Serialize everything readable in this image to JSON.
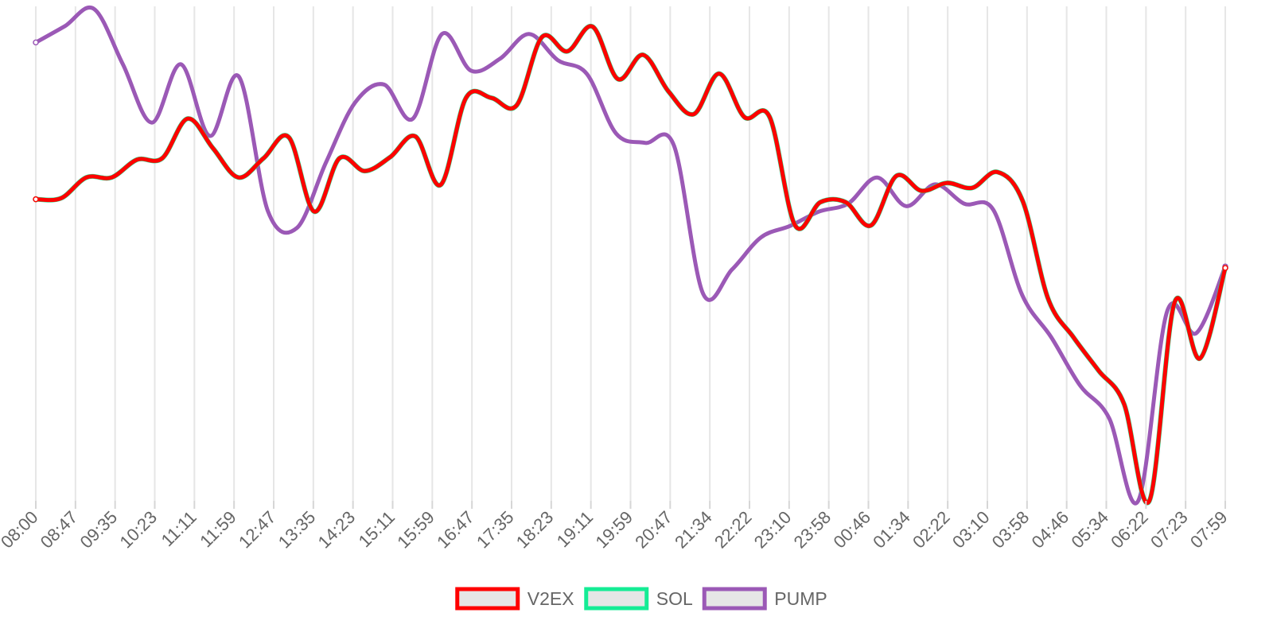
{
  "chart_data": {
    "type": "line",
    "title": "",
    "xlabel": "",
    "ylabel": "",
    "x_tick_labels": [
      "08:00",
      "08:47",
      "09:35",
      "10:23",
      "11:11",
      "11:59",
      "12:47",
      "13:35",
      "14:23",
      "15:11",
      "15:59",
      "16:47",
      "17:35",
      "18:23",
      "19:11",
      "19:59",
      "20:47",
      "21:34",
      "22:22",
      "23:10",
      "23:58",
      "00:46",
      "01:34",
      "02:22",
      "03:10",
      "03:58",
      "04:46",
      "05:34",
      "06:22",
      "07:23",
      "07:59"
    ],
    "y_axis_labels_shown": false,
    "grid": "vertical",
    "legend_position": "bottom",
    "ylim": [
      0,
      100
    ],
    "series": [
      {
        "name": "V2EX",
        "color": "#ff0000",
        "values": [
          61.0,
          61.2,
          65.4,
          65.4,
          69.0,
          69.3,
          77.3,
          71.3,
          65.4,
          69.3,
          73.5,
          58.5,
          69.3,
          66.7,
          69.5,
          73.7,
          63.9,
          81.5,
          81.5,
          80.0,
          93.8,
          90.9,
          95.9,
          85.3,
          90.2,
          82.8,
          78.2,
          86.4,
          77.6,
          77.6,
          55.7,
          60.4,
          60.4,
          55.7,
          65.7,
          62.7,
          64.3,
          63.3,
          66.5,
          60.6,
          40.9,
          33.1,
          26.3,
          19.6,
          0.0,
          40.2,
          28.8,
          47.1
        ]
      },
      {
        "name": "SOL",
        "color": "#15ec95",
        "values": [
          61.0,
          61.2,
          65.4,
          65.4,
          69.0,
          69.3,
          77.3,
          71.3,
          65.4,
          69.3,
          73.5,
          58.5,
          69.3,
          66.7,
          69.5,
          73.7,
          63.9,
          81.5,
          81.5,
          80.0,
          93.8,
          90.9,
          95.9,
          85.3,
          90.2,
          82.8,
          78.2,
          86.4,
          77.6,
          77.6,
          55.7,
          60.4,
          60.4,
          55.7,
          65.7,
          62.7,
          64.3,
          63.3,
          66.5,
          60.6,
          40.9,
          33.1,
          26.3,
          19.6,
          0.0,
          40.2,
          28.8,
          47.1
        ]
      },
      {
        "name": "PUMP",
        "color": "#9b59b6",
        "values": [
          92.7,
          96.0,
          99.5,
          88.3,
          76.5,
          88.3,
          73.8,
          85.8,
          58.6,
          55.2,
          68.4,
          80.5,
          84.2,
          77.3,
          94.4,
          87.0,
          89.4,
          94.4,
          89.1,
          86.3,
          74.3,
          72.4,
          71.8,
          41.9,
          46.8,
          53.3,
          55.6,
          58.5,
          60.1,
          65.4,
          59.6,
          64.0,
          60.1,
          58.9,
          41.6,
          33.1,
          23.3,
          16.7,
          0.0,
          38.4,
          33.9,
          47.4
        ]
      }
    ]
  }
}
